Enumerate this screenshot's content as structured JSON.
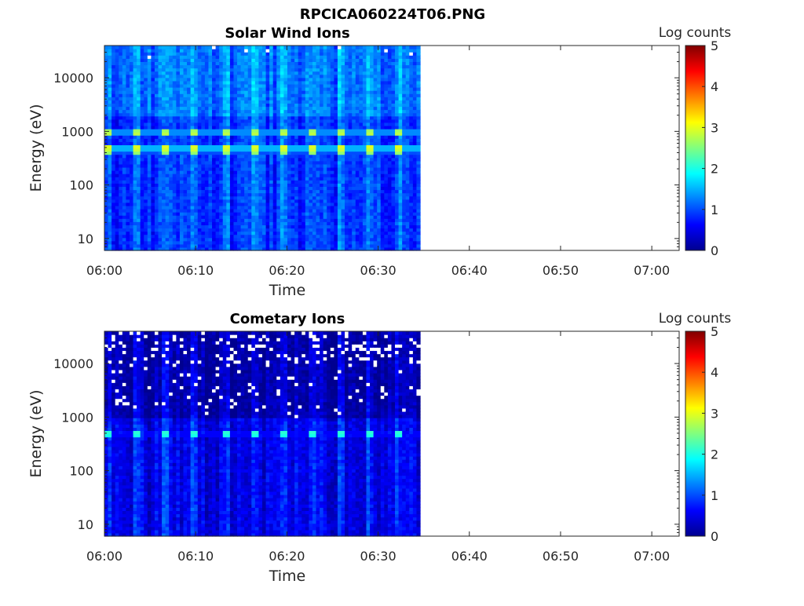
{
  "figure_title": "RPCICA060224T06.PNG",
  "colormap_stops": [
    "#00008f",
    "#0000ff",
    "#00ffff",
    "#ffff00",
    "#ff0000",
    "#800000"
  ],
  "chart_data": [
    {
      "type": "heatmap",
      "title": "Solar Wind Ions",
      "xlabel": "Time",
      "ylabel": "Energy (eV)",
      "x_ticks": [
        "06:00",
        "06:10",
        "06:20",
        "06:30",
        "06:40",
        "06:50",
        "07:00"
      ],
      "x_tick_minutes": [
        0,
        10,
        20,
        30,
        40,
        50,
        60
      ],
      "xlim_minutes": [
        0,
        63
      ],
      "data_end_minute": 34.6,
      "y_scale": "log",
      "y_ticks": [
        "10",
        "100",
        "1000",
        "10000"
      ],
      "y_tick_values": [
        10,
        100,
        1000,
        10000
      ],
      "ylim": [
        6,
        40000
      ],
      "colorbar": {
        "title": "Log counts",
        "ticks": [
          "0",
          "1",
          "2",
          "3",
          "4",
          "5"
        ],
        "range": [
          0,
          5
        ]
      },
      "peaks": [
        {
          "energy_eV": 950,
          "log_counts": 2.9
        },
        {
          "energy_eV": 500,
          "log_counts": 3.1
        },
        {
          "energy_eV": 400,
          "log_counts": 2.6
        }
      ],
      "background_log_counts": 0.9,
      "noise_seed": 7
    },
    {
      "type": "heatmap",
      "title": "Cometary Ions",
      "xlabel": "Time",
      "ylabel": "Energy (eV)",
      "x_ticks": [
        "06:00",
        "06:10",
        "06:20",
        "06:30",
        "06:40",
        "06:50",
        "07:00"
      ],
      "x_tick_minutes": [
        0,
        10,
        20,
        30,
        40,
        50,
        60
      ],
      "xlim_minutes": [
        0,
        63
      ],
      "data_end_minute": 34.6,
      "y_scale": "log",
      "y_ticks": [
        "10",
        "100",
        "1000",
        "10000"
      ],
      "y_tick_values": [
        10,
        100,
        1000,
        10000
      ],
      "ylim": [
        6,
        40000
      ],
      "colorbar": {
        "title": "Log counts",
        "ticks": [
          "0",
          "1",
          "2",
          "3",
          "4",
          "5"
        ],
        "range": [
          0,
          5
        ]
      },
      "peaks": [
        {
          "energy_eV": 500,
          "log_counts": 2.2
        }
      ],
      "background_log_counts": 0.55,
      "noise_seed": 19
    }
  ]
}
